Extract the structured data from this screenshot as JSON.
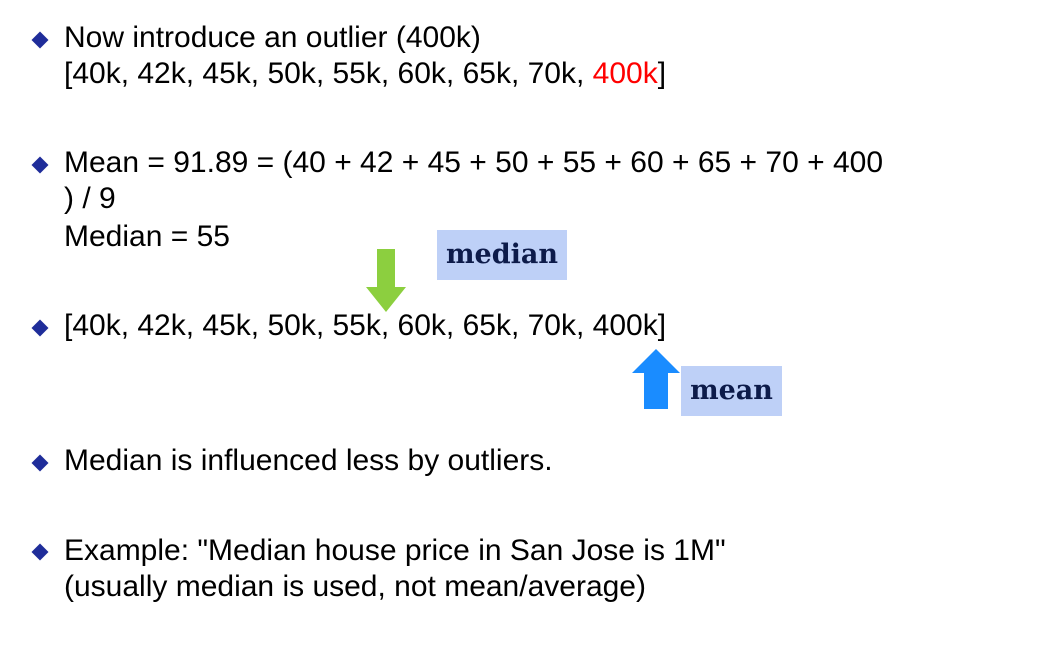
{
  "bullet1": {
    "line1": "Now introduce an outlier (400k)",
    "list_prefix": "[40k, 42k, 45k, 50k, 55k, 60k, 65k, 70k, ",
    "list_outlier": "400k",
    "list_suffix": "]"
  },
  "bullet2": {
    "line1": "Mean = 91.89 =  (40 + 42 + 45 + 50 + 55 + 60 + 65 + 70 + 400",
    "line2": ") / 9",
    "line3": "Median = 55"
  },
  "bullet3": {
    "list": "[40k, 42k, 45k, 50k, 55k, 60k, 65k, 70k, 400k]"
  },
  "labels": {
    "median": "median",
    "mean": "mean"
  },
  "bullet4": {
    "line1": "Median is influenced less by outliers."
  },
  "bullet5": {
    "line1": "Example:  \"Median house price in San Jose is 1M\"",
    "line2": "(usually median is used, not mean/average)"
  },
  "colors": {
    "bullet": "#1f2d9a",
    "outlier_text": "#ff0000",
    "median_arrow": "#8ccf3f",
    "mean_arrow": "#1a8cff",
    "label_bg": "#bed0f7"
  }
}
